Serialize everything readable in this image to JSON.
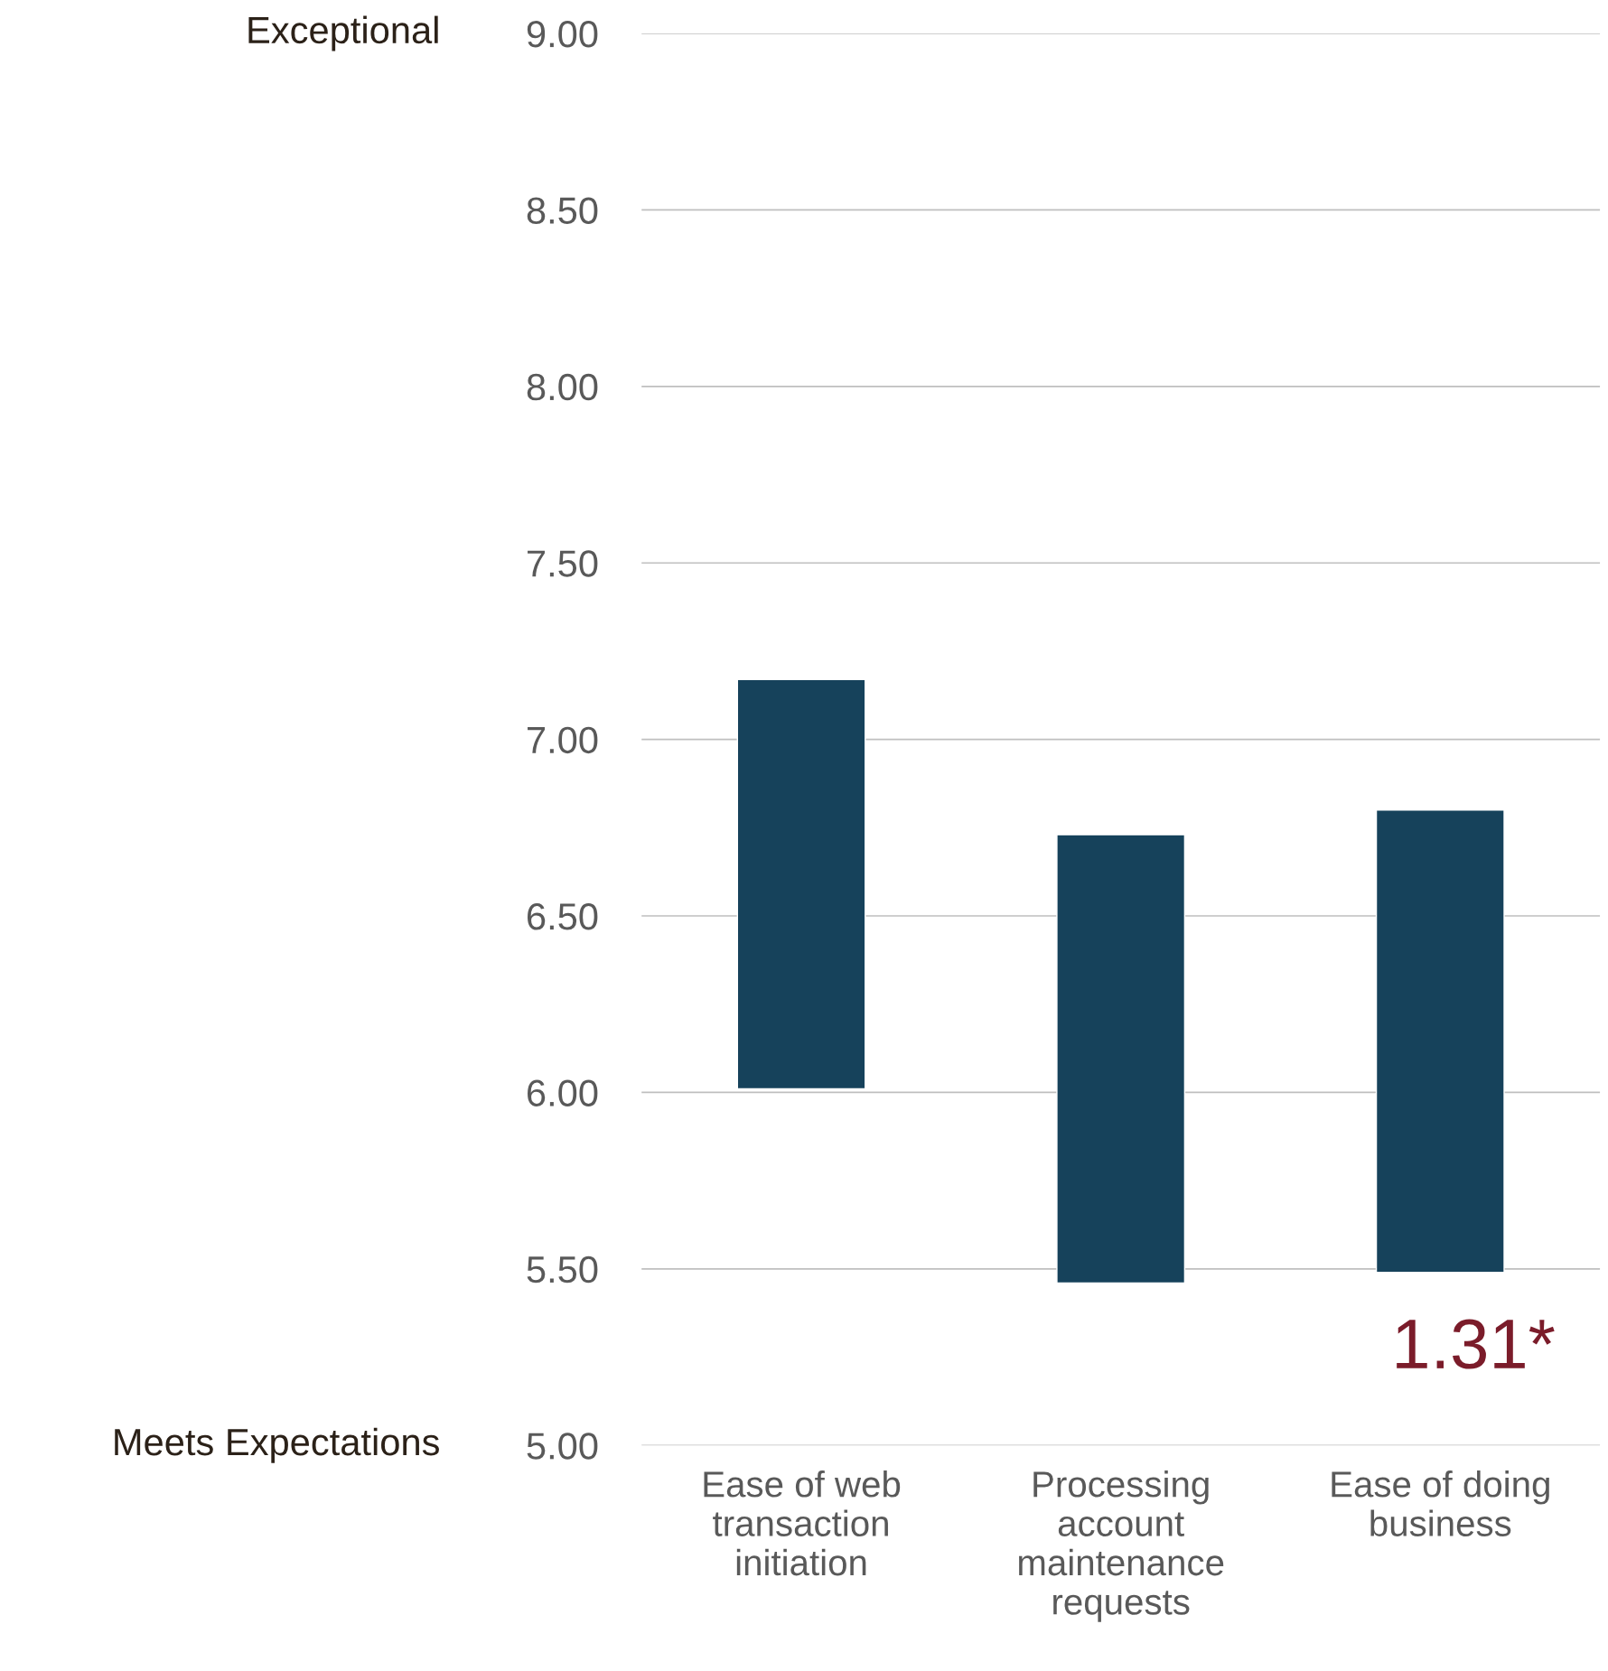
{
  "chart_data": {
    "type": "bar",
    "categories": [
      "Ease of web\ntransaction\ninitiation",
      "Processing\naccount\nmaintenance\nrequests",
      "Ease of doing\nbusiness"
    ],
    "values": [
      1.16,
      1.27,
      1.31
    ],
    "base": [
      6.01,
      5.46,
      5.49
    ],
    "color": "#16425b",
    "ylim": [
      5,
      9
    ],
    "yticks": [
      {
        "value": 5,
        "label": "5.00"
      },
      {
        "value": 5.5,
        "label": "5.50"
      },
      {
        "value": 6,
        "label": "6.00"
      },
      {
        "value": 6.5,
        "label": "6.50"
      },
      {
        "value": 7,
        "label": "7.00"
      },
      {
        "value": 7.5,
        "label": "7.50"
      },
      {
        "value": 8,
        "label": "8.00"
      },
      {
        "value": 8.5,
        "label": "8.50"
      },
      {
        "value": 9,
        "label": "9.00"
      }
    ],
    "grid": "y",
    "annotations": [
      "Exceptional",
      "Meets Expectations",
      "1.31*"
    ]
  }
}
